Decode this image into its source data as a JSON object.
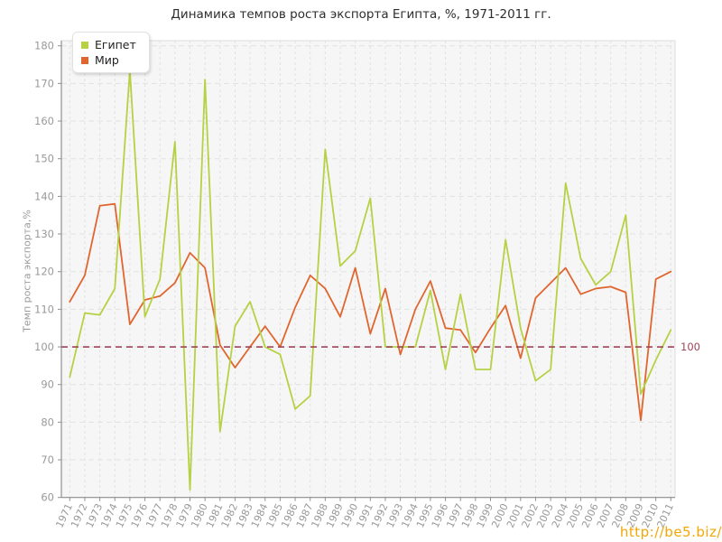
{
  "title": "Динамика темпов роста экспорта Египта, %, 1971-2011 гг.",
  "watermark": "http://be5.biz/",
  "chart_data": {
    "type": "line",
    "title": "Динамика темпов роста экспорта Египта, %, 1971-2011 гг.",
    "xlabel": "",
    "ylabel": "Темп роста экспорта,%",
    "ylim": [
      60,
      180
    ],
    "ytick_step": 10,
    "grid": true,
    "grid_style": "dashed",
    "legend_position": "top-left",
    "plot_bg_color": "#f6f6f6",
    "grid_color": "#e2e2e2",
    "axis_color": "#8f8f8f",
    "tick_label_color": "#9a9a9a",
    "categories": [
      1971,
      1972,
      1973,
      1974,
      1975,
      1976,
      1977,
      1978,
      1979,
      1980,
      1981,
      1982,
      1983,
      1984,
      1985,
      1986,
      1987,
      1988,
      1989,
      1990,
      1991,
      1992,
      1993,
      1994,
      1995,
      1996,
      1997,
      1998,
      1999,
      2000,
      2001,
      2002,
      2003,
      2004,
      2005,
      2006,
      2007,
      2008,
      2009,
      2010,
      2011
    ],
    "series": [
      {
        "name": "Мир",
        "color": "#e0662f",
        "values": [
          112,
          119,
          137.5,
          138,
          106,
          112.5,
          113.5,
          117,
          125,
          121,
          100.5,
          94.5,
          100,
          105.5,
          100,
          110.5,
          119,
          115.5,
          108,
          121,
          103.5,
          115.5,
          98,
          110,
          117.5,
          105,
          104.5,
          98.5,
          105,
          111,
          97,
          113,
          117,
          121,
          114,
          115.5,
          116,
          114.5,
          80.5,
          118,
          120
        ]
      },
      {
        "name": "Египет",
        "color": "#b6d143",
        "values": [
          92,
          109,
          108.5,
          115.5,
          173.5,
          108,
          118,
          154.5,
          62,
          171,
          77.5,
          105.5,
          112,
          100,
          98,
          83.5,
          87,
          152.5,
          121.5,
          125.5,
          139.5,
          100,
          100,
          100,
          115,
          94,
          114,
          94,
          94,
          128.5,
          105,
          91,
          94,
          143.5,
          123.5,
          116.5,
          120,
          135,
          87.5,
          96.5,
          104.5
        ]
      }
    ],
    "reference_line": {
      "value": 100,
      "label": "100",
      "color": "#a04458",
      "style": "dashed"
    }
  }
}
